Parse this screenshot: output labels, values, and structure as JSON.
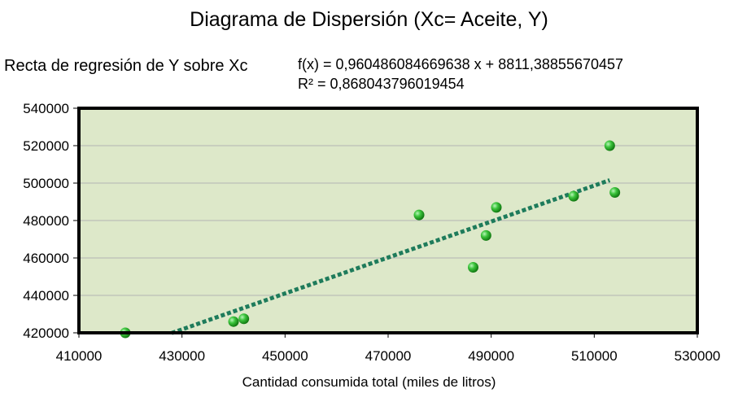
{
  "chart_data": {
    "type": "scatter",
    "title": "Diagrama de Dispersión (Xc= Aceite, Y)",
    "xlabel": "Cantidad consumida total (miles de litros)",
    "ylabel": "",
    "xlim": [
      410000,
      530000
    ],
    "ylim": [
      420000,
      540000
    ],
    "x_ticks": [
      "410000",
      "430000",
      "450000",
      "470000",
      "490000",
      "510000",
      "530000"
    ],
    "y_ticks": [
      "420000",
      "440000",
      "460000",
      "480000",
      "500000",
      "520000",
      "540000"
    ],
    "grid": "horizontal",
    "series": [
      {
        "points": [
          {
            "x": 419000,
            "y": 420000
          },
          {
            "x": 440000,
            "y": 426000
          },
          {
            "x": 442000,
            "y": 427500
          },
          {
            "x": 476000,
            "y": 483000
          },
          {
            "x": 486500,
            "y": 455000
          },
          {
            "x": 489000,
            "y": 472000
          },
          {
            "x": 491000,
            "y": 487000
          },
          {
            "x": 506000,
            "y": 493000
          },
          {
            "x": 513000,
            "y": 520000
          },
          {
            "x": 514000,
            "y": 495000
          }
        ],
        "color": "#22aa22"
      }
    ],
    "trendline": {
      "label": "Recta de regresión de Y sobre Xc",
      "slope": 0.960486084669638,
      "intercept": 8811.38855670457,
      "x_range": [
        428000,
        513000
      ],
      "equation": "f(x) = 0,960486084669638 x + 8811,38855670457",
      "r_squared": "R² = 0,868043796019454",
      "color": "#1e7b5b"
    },
    "plot_background": "#dde8c9"
  }
}
